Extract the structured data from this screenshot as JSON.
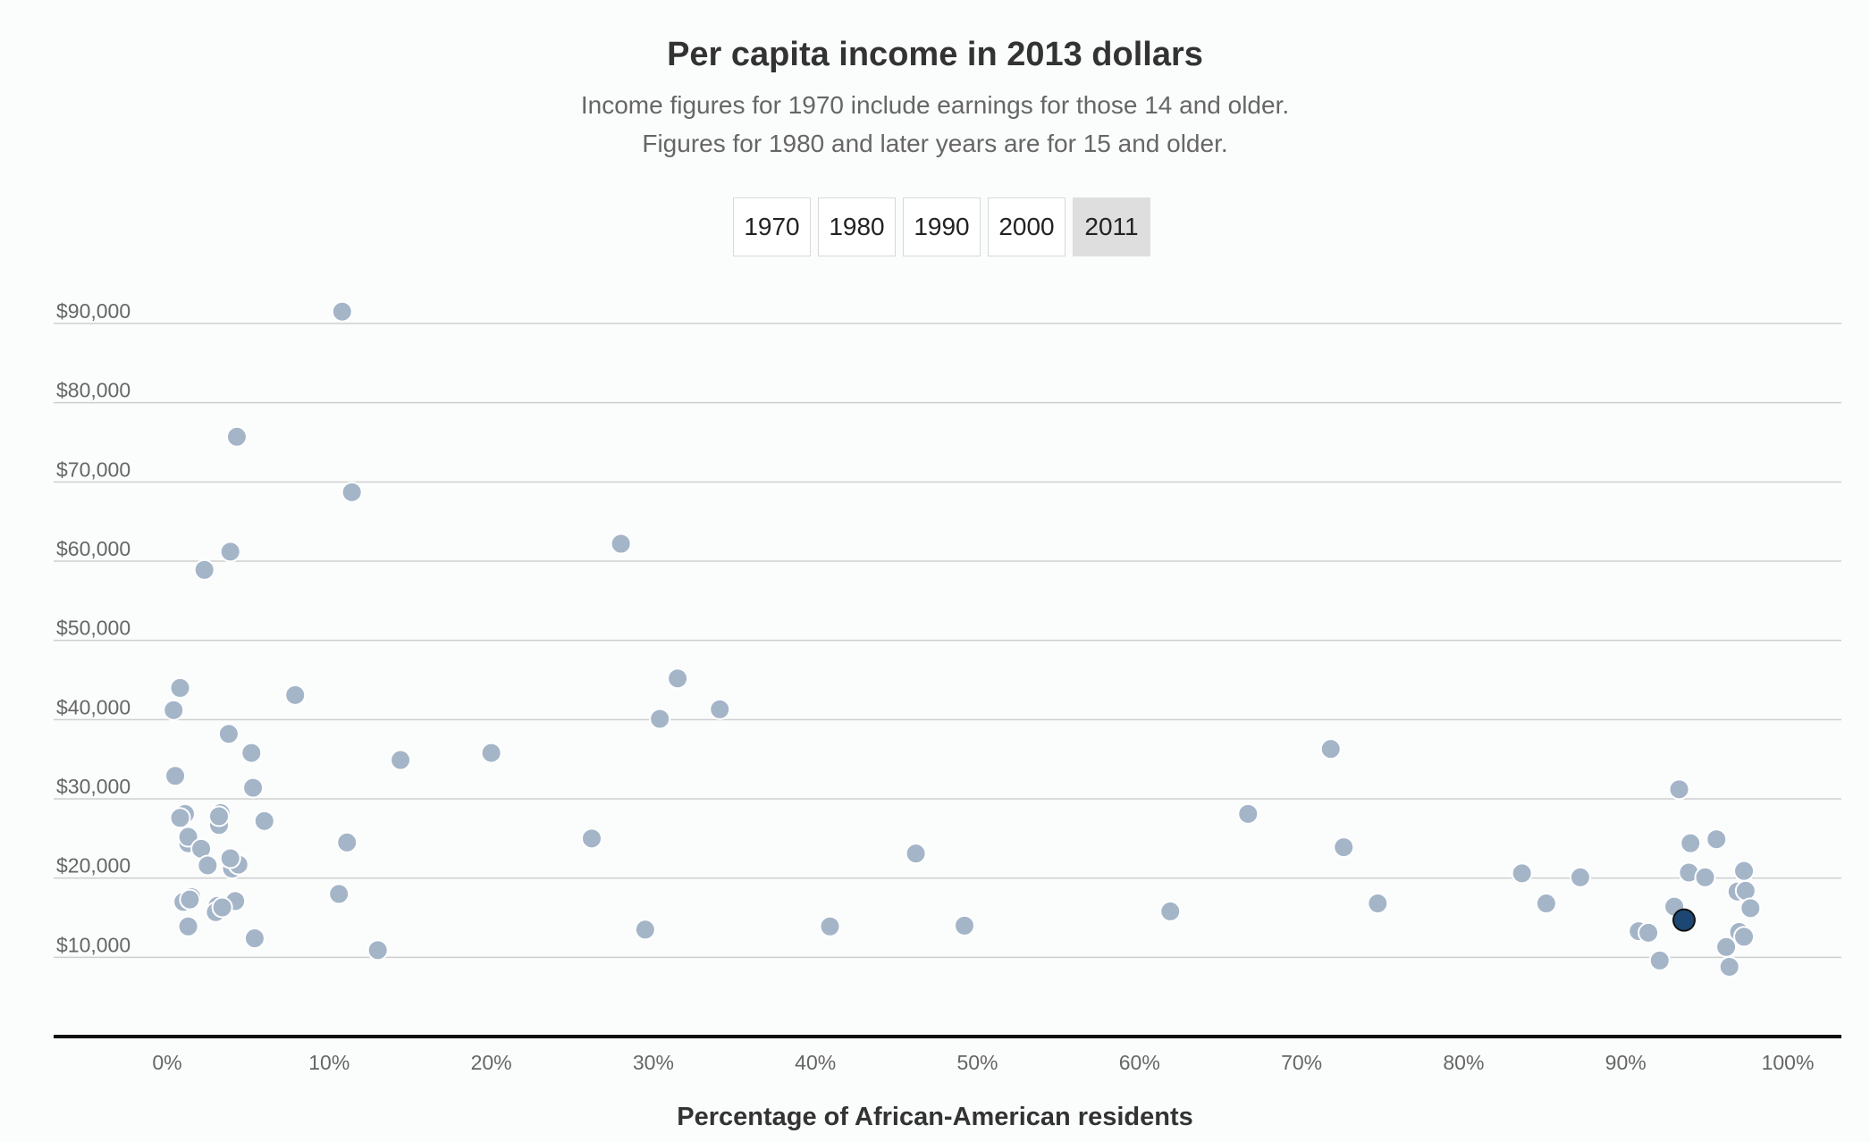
{
  "chart_data": {
    "type": "scatter",
    "title": "Per capita income in 2013 dollars",
    "subtitle": [
      "Income figures for 1970 include earnings for those 14 and older.",
      "Figures for 1980 and later years are for 15 and older."
    ],
    "xlabel": "Percentage of African-American residents",
    "ylabel": "",
    "xlim": [
      0,
      100
    ],
    "ylim": [
      0,
      90000
    ],
    "x_ticks": [
      0,
      10,
      20,
      30,
      40,
      50,
      60,
      70,
      80,
      90,
      100
    ],
    "x_tick_labels": [
      "0%",
      "10%",
      "20%",
      "30%",
      "40%",
      "50%",
      "60%",
      "70%",
      "80%",
      "90%",
      "100%"
    ],
    "y_ticks": [
      10000,
      20000,
      30000,
      40000,
      50000,
      60000,
      70000,
      80000,
      90000
    ],
    "y_tick_labels": [
      "$10,000",
      "$20,000",
      "$30,000",
      "$40,000",
      "$50,000",
      "$60,000",
      "$70,000",
      "$80,000",
      "$90,000"
    ],
    "grid": true,
    "point_color": "#a4b5c8",
    "highlight_color": "#1c4772",
    "years": [
      "1970",
      "1980",
      "1990",
      "2000",
      "2011"
    ],
    "selected_year": "2011",
    "points": [
      {
        "x": 10.8,
        "y": 91500
      },
      {
        "x": 4.3,
        "y": 75700
      },
      {
        "x": 11.4,
        "y": 68700
      },
      {
        "x": 3.9,
        "y": 61200
      },
      {
        "x": 2.3,
        "y": 58900
      },
      {
        "x": 28.0,
        "y": 62200
      },
      {
        "x": 0.8,
        "y": 44000
      },
      {
        "x": 0.4,
        "y": 41200
      },
      {
        "x": 7.9,
        "y": 43100
      },
      {
        "x": 31.5,
        "y": 45200
      },
      {
        "x": 30.4,
        "y": 40100
      },
      {
        "x": 34.1,
        "y": 41300
      },
      {
        "x": 3.8,
        "y": 38200
      },
      {
        "x": 5.2,
        "y": 35800
      },
      {
        "x": 14.4,
        "y": 34900
      },
      {
        "x": 20.0,
        "y": 35800
      },
      {
        "x": 0.5,
        "y": 32900
      },
      {
        "x": 5.3,
        "y": 31400
      },
      {
        "x": 1.1,
        "y": 28100
      },
      {
        "x": 0.8,
        "y": 27600
      },
      {
        "x": 3.3,
        "y": 28200
      },
      {
        "x": 3.2,
        "y": 26700
      },
      {
        "x": 3.2,
        "y": 27800
      },
      {
        "x": 6.0,
        "y": 27200
      },
      {
        "x": 1.3,
        "y": 24400
      },
      {
        "x": 1.3,
        "y": 25200
      },
      {
        "x": 2.1,
        "y": 23700
      },
      {
        "x": 11.1,
        "y": 24500
      },
      {
        "x": 26.2,
        "y": 25000
      },
      {
        "x": 2.5,
        "y": 21600
      },
      {
        "x": 4.0,
        "y": 21200
      },
      {
        "x": 4.4,
        "y": 21700
      },
      {
        "x": 3.9,
        "y": 22500
      },
      {
        "x": 1.0,
        "y": 17000
      },
      {
        "x": 1.5,
        "y": 17600
      },
      {
        "x": 1.4,
        "y": 17300
      },
      {
        "x": 4.2,
        "y": 17100
      },
      {
        "x": 3.1,
        "y": 16500
      },
      {
        "x": 3.0,
        "y": 15700
      },
      {
        "x": 3.4,
        "y": 16300
      },
      {
        "x": 10.6,
        "y": 18000
      },
      {
        "x": 1.3,
        "y": 13900
      },
      {
        "x": 5.4,
        "y": 12400
      },
      {
        "x": 13.0,
        "y": 10900
      },
      {
        "x": 29.5,
        "y": 13500
      },
      {
        "x": 40.9,
        "y": 13900
      },
      {
        "x": 46.2,
        "y": 23100
      },
      {
        "x": 49.2,
        "y": 14000
      },
      {
        "x": 61.9,
        "y": 15800
      },
      {
        "x": 66.7,
        "y": 28100
      },
      {
        "x": 71.8,
        "y": 36300
      },
      {
        "x": 72.6,
        "y": 23900
      },
      {
        "x": 74.7,
        "y": 16800
      },
      {
        "x": 83.6,
        "y": 20600
      },
      {
        "x": 85.1,
        "y": 16800
      },
      {
        "x": 87.2,
        "y": 20100
      },
      {
        "x": 90.8,
        "y": 13300
      },
      {
        "x": 91.4,
        "y": 13100
      },
      {
        "x": 92.1,
        "y": 9600
      },
      {
        "x": 93.0,
        "y": 16400
      },
      {
        "x": 93.3,
        "y": 31200
      },
      {
        "x": 94.0,
        "y": 24400
      },
      {
        "x": 93.9,
        "y": 20700
      },
      {
        "x": 94.9,
        "y": 20100
      },
      {
        "x": 95.6,
        "y": 24900
      },
      {
        "x": 96.9,
        "y": 18300
      },
      {
        "x": 97.3,
        "y": 20900
      },
      {
        "x": 97.4,
        "y": 18400
      },
      {
        "x": 97.7,
        "y": 16200
      },
      {
        "x": 97.0,
        "y": 13200
      },
      {
        "x": 97.3,
        "y": 12600
      },
      {
        "x": 96.2,
        "y": 11300
      },
      {
        "x": 96.4,
        "y": 8800
      },
      {
        "x": 93.6,
        "y": 14700,
        "highlight": true
      }
    ]
  }
}
